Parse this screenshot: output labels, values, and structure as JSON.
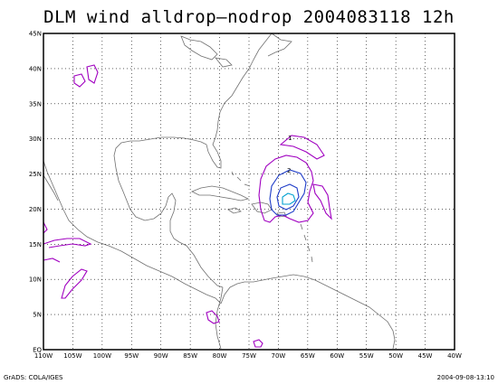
{
  "title": "DLM wind alldrop–nodrop 2004083118 12h",
  "map": {
    "lon_range": [
      -110,
      -40
    ],
    "lat_range": [
      0,
      45
    ],
    "x_ticks": [
      "110W",
      "105W",
      "100W",
      "95W",
      "90W",
      "85W",
      "80W",
      "75W",
      "70W",
      "65W",
      "60W",
      "55W",
      "50W",
      "45W",
      "40W"
    ],
    "y_ticks": [
      "EQ",
      "5N",
      "10N",
      "15N",
      "20N",
      "25N",
      "30N",
      "35N",
      "40N",
      "45N"
    ],
    "grid": "dotted",
    "contour_colors": {
      "outer": "#a000c0",
      "middle": "#1e3cc8",
      "inner": "#00a0d0"
    },
    "contour_labels": [
      "1",
      "2"
    ]
  },
  "footer": {
    "credit": "GrADS: COLA/IGES",
    "timestamp": "2004-09-08-13:10"
  }
}
